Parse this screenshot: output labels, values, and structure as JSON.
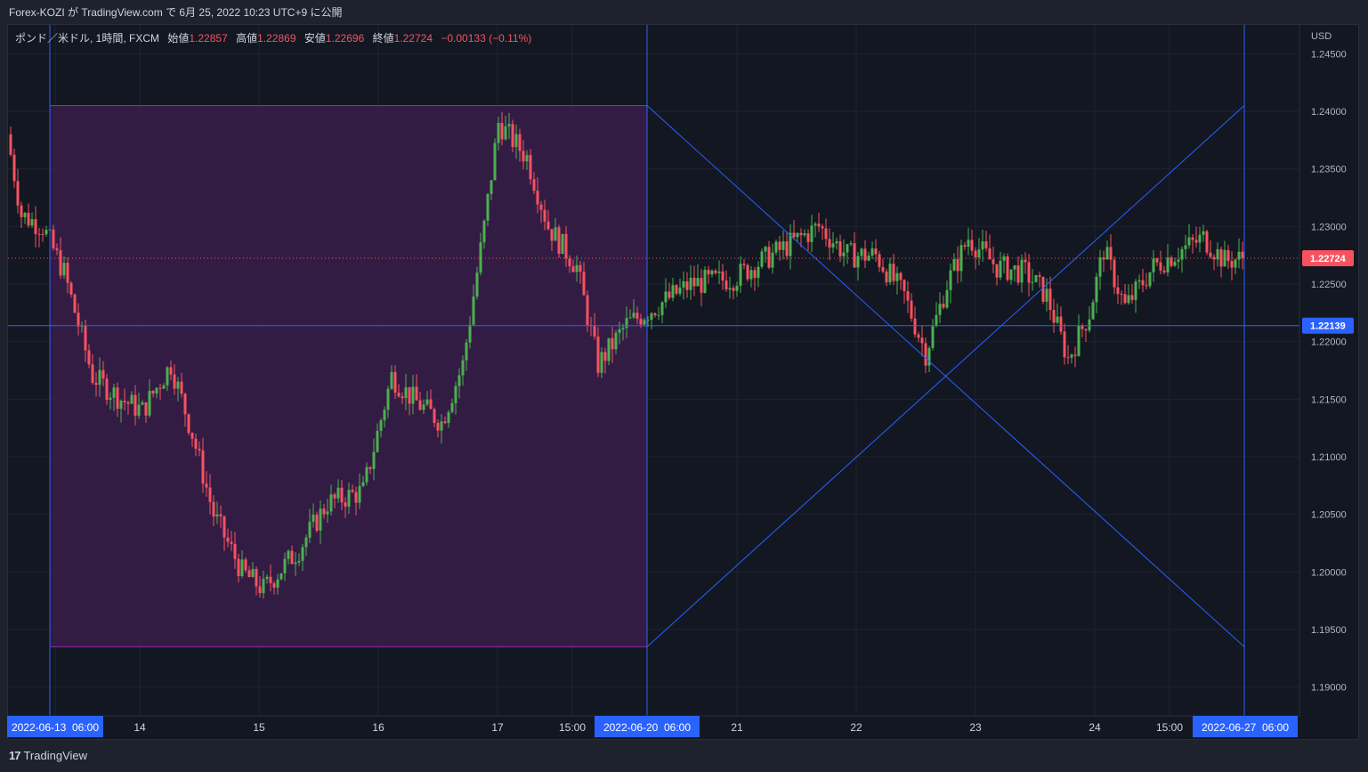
{
  "header": {
    "published_by": "Forex-KOZI が TradingView.com で 6月 25, 2022 10:23 UTC+9 に公開"
  },
  "legend": {
    "symbol": "ポンド／米ドル, 1時間, FXCM",
    "open_label": "始値",
    "open_value": "1.22857",
    "high_label": "高値",
    "high_value": "1.22869",
    "low_label": "安値",
    "low_value": "1.22696",
    "close_label": "終値",
    "close_value": "1.22724",
    "change": "−0.00133 (−0.11%)"
  },
  "colors": {
    "up": "#26a69a",
    "up_body": "#4caf50",
    "down": "#f7525f",
    "drawing": "#2962ff",
    "rect_fill": "#3a1d4a",
    "rect_border": "#9c27b0",
    "price_tag": "#f7525f",
    "hline_tag": "#2962ff"
  },
  "chart_data": {
    "type": "candlestick",
    "currency": "USD",
    "ylim": [
      1.1875,
      1.2475
    ],
    "y_ticks": [
      "1.24500",
      "1.24000",
      "1.23500",
      "1.23000",
      "1.22500",
      "1.22000",
      "1.21500",
      "1.21000",
      "1.20500",
      "1.20000",
      "1.19500",
      "1.19000"
    ],
    "x_ticks": [
      "2022-06-13  06:00",
      "14",
      "15",
      "16",
      "17",
      "15:00",
      "2022-06-20  06:00",
      "21",
      "22",
      "23",
      "24",
      "15:00",
      "2022-06-27  06:00"
    ],
    "current_price": "1.22724",
    "horizontal_line_price": "1.22139",
    "path_keypoints": [
      {
        "bar": 0,
        "price": 1.238
      },
      {
        "bar": 4,
        "price": 1.231
      },
      {
        "bar": 10,
        "price": 1.23
      },
      {
        "bar": 16,
        "price": 1.226
      },
      {
        "bar": 24,
        "price": 1.217
      },
      {
        "bar": 32,
        "price": 1.215
      },
      {
        "bar": 38,
        "price": 1.214
      },
      {
        "bar": 46,
        "price": 1.218
      },
      {
        "bar": 52,
        "price": 1.212
      },
      {
        "bar": 58,
        "price": 1.205
      },
      {
        "bar": 66,
        "price": 1.2
      },
      {
        "bar": 72,
        "price": 1.1985
      },
      {
        "bar": 82,
        "price": 1.202
      },
      {
        "bar": 90,
        "price": 1.206
      },
      {
        "bar": 100,
        "price": 1.207
      },
      {
        "bar": 108,
        "price": 1.217
      },
      {
        "bar": 114,
        "price": 1.215
      },
      {
        "bar": 122,
        "price": 1.213
      },
      {
        "bar": 128,
        "price": 1.218
      },
      {
        "bar": 134,
        "price": 1.23
      },
      {
        "bar": 138,
        "price": 1.239
      },
      {
        "bar": 146,
        "price": 1.236
      },
      {
        "bar": 152,
        "price": 1.23
      },
      {
        "bar": 160,
        "price": 1.2265
      },
      {
        "bar": 166,
        "price": 1.218
      },
      {
        "bar": 174,
        "price": 1.2215
      },
      {
        "bar": 182,
        "price": 1.223
      },
      {
        "bar": 192,
        "price": 1.225
      },
      {
        "bar": 204,
        "price": 1.2255
      },
      {
        "bar": 212,
        "price": 1.227
      },
      {
        "bar": 220,
        "price": 1.2285
      },
      {
        "bar": 228,
        "price": 1.23
      },
      {
        "bar": 236,
        "price": 1.2275
      },
      {
        "bar": 244,
        "price": 1.2275
      },
      {
        "bar": 252,
        "price": 1.224
      },
      {
        "bar": 258,
        "price": 1.219
      },
      {
        "bar": 264,
        "price": 1.225
      },
      {
        "bar": 270,
        "price": 1.229
      },
      {
        "bar": 278,
        "price": 1.2265
      },
      {
        "bar": 286,
        "price": 1.226
      },
      {
        "bar": 292,
        "price": 1.224
      },
      {
        "bar": 298,
        "price": 1.2185
      },
      {
        "bar": 304,
        "price": 1.2225
      },
      {
        "bar": 308,
        "price": 1.228
      },
      {
        "bar": 314,
        "price": 1.223
      },
      {
        "bar": 322,
        "price": 1.2265
      },
      {
        "bar": 330,
        "price": 1.228
      },
      {
        "bar": 336,
        "price": 1.229
      },
      {
        "bar": 342,
        "price": 1.227
      },
      {
        "bar": 346,
        "price": 1.2272
      }
    ],
    "drawings": {
      "price_range_box": {
        "from": "2022-06-13  06:00",
        "to": "2022-06-20  06:00",
        "high": 1.2405,
        "low": 1.1935
      },
      "vertical_lines": [
        "2022-06-13  06:00",
        "2022-06-20  06:00",
        "2022-06-27  06:00"
      ],
      "cross_lines": [
        {
          "from": [
            "2022-06-20  06:00",
            1.2405
          ],
          "to": [
            "2022-06-27  06:00",
            1.1935
          ]
        },
        {
          "from": [
            "2022-06-20  06:00",
            1.1935
          ],
          "to": [
            "2022-06-27  06:00",
            1.2405
          ]
        }
      ]
    }
  },
  "footer": {
    "brand": "TradingView"
  }
}
